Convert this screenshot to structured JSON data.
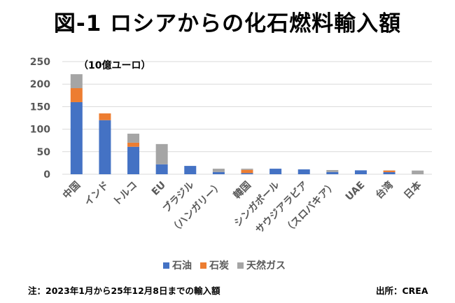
{
  "title": "図-1 ロシアからの化石燃料輸入額",
  "footnote": "注：2023年1月から25年12月8日までの輸入額",
  "source": "出所：CREA",
  "chart_data": {
    "type": "bar",
    "stacked": true,
    "title": "図-1 ロシアからの化石燃料輸入額",
    "unit_label": "（10億ユーロ）",
    "ylim": [
      0,
      250
    ],
    "yticks": [
      0,
      50,
      100,
      150,
      200,
      250
    ],
    "grid": true,
    "legend_position": "bottom",
    "categories": [
      "中国",
      "インド",
      "トルコ",
      "EU",
      "ブラジル",
      "（ハンガリー）",
      "韓国",
      "シンガポール",
      "サウジアラビア",
      "（スロバキア）",
      "UAE",
      "台湾",
      "日本"
    ],
    "series": [
      {
        "name": "石油",
        "color": "#4472C4",
        "values": [
          160,
          120,
          61,
          22,
          18.5,
          5,
          2.6,
          12.3,
          10.8,
          5,
          8.7,
          4.6,
          0
        ]
      },
      {
        "name": "石炭",
        "color": "#ED7D31",
        "values": [
          31,
          15,
          9,
          0,
          0,
          0,
          7.2,
          0,
          0,
          0,
          0,
          3.6,
          0
        ]
      },
      {
        "name": "天然ガス",
        "color": "#A5A5A5",
        "values": [
          31,
          0,
          20,
          45,
          0,
          7.3,
          2.5,
          0,
          0,
          4.3,
          0,
          0.5,
          8.2
        ]
      }
    ]
  }
}
